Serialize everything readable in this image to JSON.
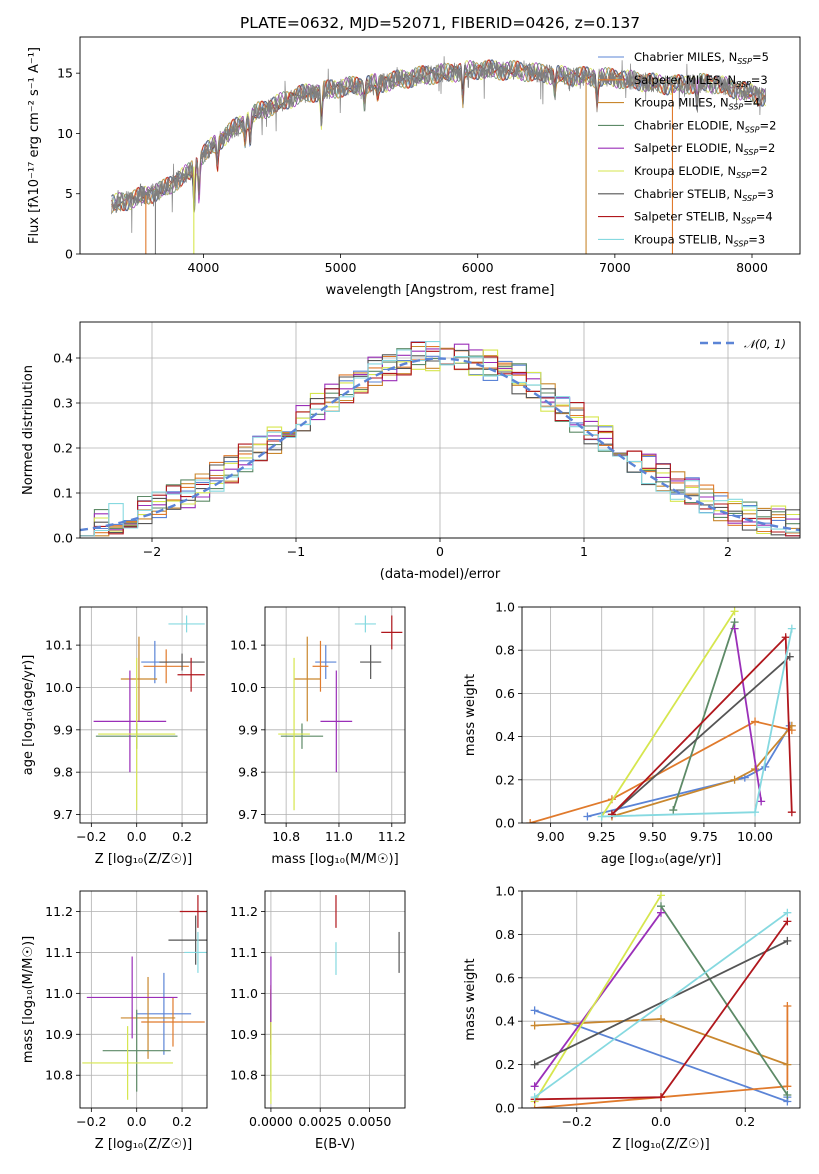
{
  "colors": [
    "#5b84d6",
    "#e07a2c",
    "#c9872e",
    "#5d8a67",
    "#9a2fb8",
    "#d6e64e",
    "#555555",
    "#b0171d",
    "#86d9e0"
  ],
  "series_names": [
    "Chabrier MILES, N_SSP=5",
    "Salpeter MILES, N_SSP=3",
    "Kroupa MILES, N_SSP=4",
    "Chabrier ELODIE, N_SSP=2",
    "Salpeter ELODIE, N_SSP=2",
    "Kroupa ELODIE, N_SSP=2",
    "Chabrier STELIB, N_SSP=3",
    "Salpeter STELIB, N_SSP=4",
    "Kroupa STELIB, N_SSP=3"
  ],
  "chart_data": [
    {
      "id": "spectrum",
      "type": "line",
      "title": "PLATE=0632, MJD=52071, FIBERID=0426, z=0.137",
      "xlabel": "wavelength [Angstrom, rest frame]",
      "ylabel": "Flux [fλ10⁻¹⁷ erg cm⁻² s⁻¹ A⁻¹]",
      "xlim": [
        3100,
        8350
      ],
      "ylim": [
        0,
        18
      ],
      "xticks": [
        4000,
        5000,
        6000,
        7000,
        8000
      ],
      "yticks": [
        0,
        5,
        10,
        15
      ],
      "data_range": [
        3330,
        8100
      ],
      "continuum": [
        [
          3330,
          4.1
        ],
        [
          3500,
          4.6
        ],
        [
          3700,
          5.3
        ],
        [
          3900,
          6.8
        ],
        [
          4000,
          8.3
        ],
        [
          4200,
          10.2
        ],
        [
          4400,
          11.8
        ],
        [
          4700,
          13.2
        ],
        [
          5000,
          13.8
        ],
        [
          5300,
          14.2
        ],
        [
          5600,
          14.8
        ],
        [
          6000,
          15.3
        ],
        [
          6300,
          15.2
        ],
        [
          6600,
          14.8
        ],
        [
          7000,
          14.6
        ],
        [
          7400,
          14.0
        ],
        [
          7700,
          14.2
        ],
        [
          8100,
          13.0
        ]
      ],
      "absorption_lines": [
        [
          3933,
          3.5
        ],
        [
          3968,
          3.0
        ],
        [
          4102,
          1.8
        ],
        [
          4304,
          1.5
        ],
        [
          4341,
          1.8
        ],
        [
          4861,
          2.6
        ],
        [
          5175,
          1.5
        ],
        [
          5270,
          1.0
        ],
        [
          5892,
          2.4
        ],
        [
          6563,
          1.4
        ],
        [
          6870,
          2.0
        ],
        [
          7600,
          1.8
        ]
      ],
      "spikes": [
        [
          3580,
          0
        ],
        [
          3650,
          0
        ],
        [
          3930,
          0
        ],
        [
          6790,
          0
        ],
        [
          7420,
          0
        ]
      ],
      "legend": [
        "Chabrier MILES, N_SSP=5",
        "Salpeter MILES, N_SSP=3",
        "Kroupa MILES, N_SSP=4",
        "Chabrier ELODIE, N_SSP=2",
        "Salpeter ELODIE, N_SSP=2",
        "Kroupa ELODIE, N_SSP=2",
        "Chabrier STELIB, N_SSP=3",
        "Salpeter STELIB, N_SSP=4",
        "Kroupa STELIB, N_SSP=3"
      ],
      "legend_placement": "right"
    },
    {
      "id": "residuals",
      "type": "histogram",
      "xlabel": "(data-model)/error",
      "ylabel": "Normed distribution",
      "xlim": [
        -2.5,
        2.5
      ],
      "ylim": [
        0,
        0.48
      ],
      "xticks": [
        -2,
        -1,
        0,
        1,
        2
      ],
      "yticks": [
        0.0,
        0.1,
        0.2,
        0.3,
        0.4
      ],
      "bin_width": 0.1,
      "reference_curve": "𝒩(0, 1)",
      "grid": true,
      "legend_placement": "top-right"
    },
    {
      "id": "age_vs_Z",
      "type": "errorbar",
      "xlabel": "Z [log₁₀(Z/Z☉)]",
      "ylabel": "age  [log₁₀(age/yr)]",
      "xlim": [
        -0.25,
        0.31
      ],
      "ylim": [
        9.68,
        10.19
      ],
      "xticks": [
        -0.2,
        0.0,
        0.2
      ],
      "yticks": [
        9.7,
        9.8,
        9.9,
        10.0,
        10.1
      ],
      "points": [
        {
          "x": 0.08,
          "y": 10.06,
          "dx": 0.06,
          "dy": 0.05,
          "c": 0
        },
        {
          "x": 0.13,
          "y": 10.05,
          "dx": 0.1,
          "dy": 0.04,
          "c": 1
        },
        {
          "x": 0.01,
          "y": 10.02,
          "dx": 0.08,
          "dy": 0.1,
          "c": 2
        },
        {
          "x": 0.0,
          "y": 9.885,
          "dx": 0.18,
          "dy": 0.03,
          "c": 3
        },
        {
          "x": -0.03,
          "y": 9.92,
          "dx": 0.16,
          "dy": 0.12,
          "c": 4
        },
        {
          "x": 0.0,
          "y": 9.89,
          "dx": 0.17,
          "dy": 0.18,
          "c": 5
        },
        {
          "x": 0.2,
          "y": 10.06,
          "dx": 0.1,
          "dy": 0.02,
          "c": 6
        },
        {
          "x": 0.24,
          "y": 10.03,
          "dx": 0.06,
          "dy": 0.04,
          "c": 7
        },
        {
          "x": 0.22,
          "y": 10.15,
          "dx": 0.08,
          "dy": 0.02,
          "c": 8
        }
      ]
    },
    {
      "id": "age_vs_mass",
      "type": "errorbar",
      "xlabel": "mass [log₁₀(M/M☉)]",
      "ylabel": "",
      "xlim": [
        10.72,
        11.25
      ],
      "ylim": [
        9.68,
        10.19
      ],
      "xticks": [
        10.8,
        11.0,
        11.2
      ],
      "yticks": [
        9.7,
        9.8,
        9.9,
        10.0,
        10.1
      ],
      "points": [
        {
          "x": 10.95,
          "y": 10.06,
          "dx": 0.04,
          "dy": 0.04,
          "c": 0
        },
        {
          "x": 10.93,
          "y": 10.05,
          "dx": 0.03,
          "dy": 0.06,
          "c": 1
        },
        {
          "x": 10.88,
          "y": 10.02,
          "dx": 0.05,
          "dy": 0.1,
          "c": 2
        },
        {
          "x": 10.86,
          "y": 9.885,
          "dx": 0.08,
          "dy": 0.03,
          "c": 3
        },
        {
          "x": 10.99,
          "y": 9.92,
          "dx": 0.06,
          "dy": 0.12,
          "c": 4
        },
        {
          "x": 10.83,
          "y": 9.89,
          "dx": 0.06,
          "dy": 0.18,
          "c": 5
        },
        {
          "x": 11.12,
          "y": 10.06,
          "dx": 0.04,
          "dy": 0.04,
          "c": 6
        },
        {
          "x": 11.2,
          "y": 10.13,
          "dx": 0.04,
          "dy": 0.04,
          "c": 7
        },
        {
          "x": 11.1,
          "y": 10.15,
          "dx": 0.04,
          "dy": 0.02,
          "c": 8
        }
      ]
    },
    {
      "id": "weight_vs_age",
      "type": "line",
      "xlabel": "age  [log₁₀(age/yr)]",
      "ylabel": "mass weight",
      "xlim": [
        8.86,
        10.22
      ],
      "ylim": [
        0,
        1.0
      ],
      "xticks": [
        9.0,
        9.25,
        9.5,
        9.75,
        10.0
      ],
      "yticks": [
        0.0,
        0.2,
        0.4,
        0.6,
        0.8,
        1.0
      ],
      "grid": true,
      "series": [
        {
          "c": 0,
          "x": [
            9.18,
            9.95,
            10.05,
            10.17
          ],
          "y": [
            0.03,
            0.21,
            0.26,
            0.45
          ]
        },
        {
          "c": 1,
          "x": [
            8.9,
            9.3,
            10.0,
            10.18
          ],
          "y": [
            0.0,
            0.11,
            0.47,
            0.43
          ]
        },
        {
          "c": 2,
          "x": [
            9.3,
            9.9,
            10.0,
            10.18
          ],
          "y": [
            0.03,
            0.2,
            0.25,
            0.45
          ]
        },
        {
          "c": 3,
          "x": [
            9.6,
            9.9
          ],
          "y": [
            0.06,
            0.93
          ]
        },
        {
          "c": 4,
          "x": [
            9.9,
            10.03
          ],
          "y": [
            0.9,
            0.1
          ]
        },
        {
          "c": 5,
          "x": [
            9.25,
            9.9
          ],
          "y": [
            0.03,
            0.98
          ]
        },
        {
          "c": 6,
          "x": [
            9.3,
            10.17
          ],
          "y": [
            0.04,
            0.77
          ]
        },
        {
          "c": 7,
          "x": [
            9.3,
            10.15,
            10.18
          ],
          "y": [
            0.04,
            0.86,
            0.05
          ]
        },
        {
          "c": 8,
          "x": [
            9.25,
            10.0,
            10.18
          ],
          "y": [
            0.03,
            0.05,
            0.9
          ]
        }
      ]
    },
    {
      "id": "mass_vs_Z",
      "type": "errorbar",
      "xlabel": "Z [log₁₀(Z/Z☉)]",
      "ylabel": "mass [log₁₀(M/M☉)]",
      "xlim": [
        -0.25,
        0.31
      ],
      "ylim": [
        10.72,
        11.25
      ],
      "xticks": [
        -0.2,
        0.0,
        0.2
      ],
      "yticks": [
        10.8,
        10.9,
        11.0,
        11.1,
        11.2
      ],
      "points": [
        {
          "x": 0.12,
          "y": 10.95,
          "dx": 0.12,
          "dy": 0.1,
          "c": 0
        },
        {
          "x": 0.16,
          "y": 10.93,
          "dx": 0.14,
          "dy": 0.06,
          "c": 1
        },
        {
          "x": 0.05,
          "y": 10.94,
          "dx": 0.12,
          "dy": 0.1,
          "c": 2
        },
        {
          "x": 0.0,
          "y": 10.86,
          "dx": 0.15,
          "dy": 0.1,
          "c": 3
        },
        {
          "x": -0.02,
          "y": 10.99,
          "dx": 0.2,
          "dy": 0.1,
          "c": 4
        },
        {
          "x": -0.04,
          "y": 10.83,
          "dx": 0.2,
          "dy": 0.09,
          "c": 5
        },
        {
          "x": 0.26,
          "y": 11.13,
          "dx": 0.12,
          "dy": 0.06,
          "c": 6
        },
        {
          "x": 0.27,
          "y": 11.2,
          "dx": 0.08,
          "dy": 0.04,
          "c": 7
        },
        {
          "x": 0.27,
          "y": 11.1,
          "dx": 0.06,
          "dy": 0.05,
          "c": 8
        }
      ]
    },
    {
      "id": "mass_vs_EBV",
      "type": "errorbar",
      "xlabel": "E(B-V)",
      "ylabel": "",
      "xlim": [
        -0.0003,
        0.0068
      ],
      "ylim": [
        10.72,
        11.25
      ],
      "xticks": [
        0.0,
        0.0025,
        0.005
      ],
      "xtick_labels": [
        "0.0000",
        "0.0025",
        "0.0050"
      ],
      "yticks": [
        10.8,
        10.9,
        11.0,
        11.1,
        11.2
      ],
      "points": [
        {
          "x": 0.0,
          "y": 10.95,
          "dx": 0,
          "dy": 0.05,
          "c": 0
        },
        {
          "x": 0.0,
          "y": 10.93,
          "dx": 0,
          "dy": 0.08,
          "c": 1
        },
        {
          "x": 0.0,
          "y": 10.94,
          "dx": 0,
          "dy": 0.08,
          "c": 2
        },
        {
          "x": 0.0,
          "y": 10.86,
          "dx": 0,
          "dy": 0.1,
          "c": 3
        },
        {
          "x": 0.0,
          "y": 10.99,
          "dx": 0,
          "dy": 0.1,
          "c": 4
        },
        {
          "x": 0.0,
          "y": 10.83,
          "dx": 0,
          "dy": 0.1,
          "c": 5
        },
        {
          "x": 0.0065,
          "y": 11.1,
          "dx": 0,
          "dy": 0.05,
          "c": 6
        },
        {
          "x": 0.0033,
          "y": 11.2,
          "dx": 0,
          "dy": 0.04,
          "c": 7
        },
        {
          "x": 0.0033,
          "y": 11.085,
          "dx": 0,
          "dy": 0.04,
          "c": 8
        }
      ]
    },
    {
      "id": "weight_vs_Z",
      "type": "line",
      "xlabel": "Z [log₁₀(Z/Z☉)]",
      "ylabel": "mass weight",
      "xlim": [
        -0.33,
        0.33
      ],
      "ylim": [
        0,
        1.0
      ],
      "xticks": [
        -0.2,
        0.0,
        0.2
      ],
      "yticks": [
        0.0,
        0.2,
        0.4,
        0.6,
        0.8,
        1.0
      ],
      "grid": true,
      "series": [
        {
          "c": 0,
          "x": [
            -0.3,
            0.3,
            0.3
          ],
          "y": [
            0.45,
            0.03,
            0.05
          ]
        },
        {
          "c": 1,
          "x": [
            -0.3,
            0.0,
            0.3,
            0.3
          ],
          "y": [
            0.0,
            0.05,
            0.1,
            0.47
          ]
        },
        {
          "c": 2,
          "x": [
            -0.3,
            0.0,
            0.3
          ],
          "y": [
            0.38,
            0.41,
            0.2
          ]
        },
        {
          "c": 3,
          "x": [
            0.0,
            0.3
          ],
          "y": [
            0.93,
            0.06
          ]
        },
        {
          "c": 4,
          "x": [
            -0.3,
            0.0
          ],
          "y": [
            0.1,
            0.9
          ]
        },
        {
          "c": 5,
          "x": [
            -0.3,
            0.0
          ],
          "y": [
            0.03,
            0.98
          ]
        },
        {
          "c": 6,
          "x": [
            -0.3,
            0.3
          ],
          "y": [
            0.2,
            0.77
          ]
        },
        {
          "c": 7,
          "x": [
            -0.3,
            0.0,
            0.3
          ],
          "y": [
            0.04,
            0.05,
            0.86
          ]
        },
        {
          "c": 8,
          "x": [
            -0.3,
            0.3
          ],
          "y": [
            0.05,
            0.9
          ]
        }
      ]
    }
  ]
}
